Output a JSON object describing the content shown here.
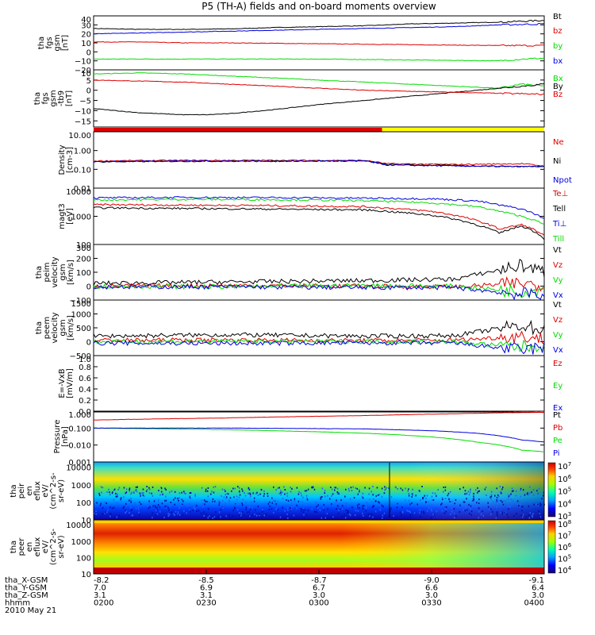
{
  "title": "P5 (TH-A) fields and on-board moments overview",
  "colors": {
    "black": "#000000",
    "red": "#dd0000",
    "green": "#00dd00",
    "blue": "#0000dd",
    "yellow": "#ffff00"
  },
  "chart_data": [
    {
      "type": "line",
      "ylabel": [
        "tha",
        "fgs",
        "gsm",
        "[nT]"
      ],
      "ylim": [
        -20,
        40
      ],
      "yticks": [
        "40",
        "30",
        "20",
        "10",
        "0",
        "−10",
        "−20"
      ],
      "ytick_values": [
        40,
        30,
        20,
        10,
        0,
        -10,
        -20
      ],
      "series": [
        {
          "name": "Bt",
          "color": "black",
          "x": [
            0,
            0.1,
            0.2,
            0.3,
            0.4,
            0.5,
            0.6,
            0.7,
            0.8,
            0.9,
            1
          ],
          "y": [
            26,
            25,
            25,
            25.5,
            27,
            28,
            29,
            31,
            32,
            33,
            35
          ]
        },
        {
          "name": "bz",
          "color": "red",
          "x": [
            0,
            0.1,
            0.2,
            0.3,
            0.4,
            0.5,
            0.6,
            0.7,
            0.8,
            0.9,
            1
          ],
          "y": [
            11,
            11,
            10,
            10,
            9.5,
            9,
            8.5,
            8,
            7.5,
            7,
            7
          ]
        },
        {
          "name": "by",
          "color": "green",
          "x": [
            0,
            0.1,
            0.2,
            0.3,
            0.4,
            0.5,
            0.6,
            0.7,
            0.8,
            0.9,
            0.95,
            1
          ],
          "y": [
            -8,
            -8,
            -8,
            -8,
            -8,
            -8,
            -8.5,
            -9,
            -9.5,
            -10,
            -8,
            -7
          ]
        },
        {
          "name": "bx",
          "color": "blue",
          "x": [
            0,
            0.1,
            0.2,
            0.3,
            0.4,
            0.5,
            0.6,
            0.7,
            0.8,
            0.9,
            1
          ],
          "y": [
            20,
            21,
            22,
            23,
            24,
            25,
            26,
            27,
            28,
            30,
            31
          ]
        }
      ]
    },
    {
      "type": "line",
      "ylabel": [
        "tha",
        "fgs",
        "gsm",
        "-tb9",
        "[nT]"
      ],
      "ylim": [
        -18,
        10
      ],
      "yticks": [
        "10",
        "5",
        "0",
        "−5",
        "−10",
        "−15"
      ],
      "ytick_values": [
        10,
        5,
        0,
        -5,
        -10,
        -15
      ],
      "series": [
        {
          "name": "Bx",
          "color": "green",
          "x": [
            0,
            0.1,
            0.2,
            0.3,
            0.4,
            0.5,
            0.6,
            0.7,
            0.8,
            0.9,
            0.95,
            1
          ],
          "y": [
            8,
            8.5,
            8,
            7,
            6,
            5,
            4,
            3,
            2,
            1,
            3,
            2
          ]
        },
        {
          "name": "By",
          "color": "black",
          "x": [
            0,
            0.05,
            0.1,
            0.2,
            0.25,
            0.3,
            0.4,
            0.5,
            0.6,
            0.7,
            0.8,
            0.9,
            1
          ],
          "y": [
            -9,
            -10,
            -11,
            -12,
            -12,
            -11.5,
            -9.5,
            -7,
            -5,
            -3,
            -1,
            1,
            3
          ]
        },
        {
          "name": "Bz",
          "color": "red",
          "x": [
            0,
            0.1,
            0.2,
            0.3,
            0.4,
            0.5,
            0.6,
            0.7,
            0.8,
            0.9,
            1
          ],
          "y": [
            5,
            4.5,
            4,
            3,
            2,
            1,
            0,
            -0.5,
            -1,
            -1.5,
            -2
          ]
        }
      ]
    },
    {
      "type": "bar",
      "mode_bar": [
        {
          "from": 0,
          "to": 0.64,
          "color": "red"
        },
        {
          "from": 0.64,
          "to": 1,
          "color": "yellow"
        }
      ]
    },
    {
      "type": "line",
      "ylabel": [
        "Density",
        "[cm-3]"
      ],
      "log": true,
      "ylim": [
        0.01,
        10
      ],
      "yticks": [
        "10.00",
        "1.00",
        "0.10",
        "0.01"
      ],
      "ytick_values": [
        10,
        1,
        0.1,
        0.01
      ],
      "series": [
        {
          "name": "Ne",
          "color": "red",
          "x": [
            0,
            0.2,
            0.4,
            0.6,
            0.65,
            0.8,
            0.95,
            1
          ],
          "y": [
            0.28,
            0.3,
            0.3,
            0.3,
            0.2,
            0.18,
            0.2,
            0.15
          ]
        },
        {
          "name": "Ni",
          "color": "black",
          "x": [
            0,
            0.2,
            0.4,
            0.6,
            0.65,
            0.8,
            0.95,
            1
          ],
          "y": [
            0.25,
            0.27,
            0.28,
            0.28,
            0.18,
            0.16,
            0.14,
            0.15
          ]
        },
        {
          "name": "Npot",
          "color": "blue",
          "x": [
            0,
            0.2,
            0.4,
            0.6,
            0.65,
            0.8,
            0.95,
            1
          ],
          "y": [
            0.26,
            0.28,
            0.27,
            0.28,
            0.17,
            0.15,
            0.14,
            0.14
          ]
        }
      ]
    },
    {
      "type": "line",
      "ylabel": [
        "magt3",
        "[eV]"
      ],
      "log": true,
      "ylim": [
        100,
        10000
      ],
      "yticks": [
        "10000",
        "1000",
        "100"
      ],
      "ytick_values": [
        10000,
        1000,
        100
      ],
      "series": [
        {
          "name": "Te⊥",
          "color": "red",
          "x": [
            0,
            0.2,
            0.4,
            0.6,
            0.75,
            0.85,
            0.9,
            0.95,
            1
          ],
          "y": [
            2600,
            2500,
            2400,
            2200,
            1500,
            700,
            350,
            500,
            200
          ]
        },
        {
          "name": "Tell",
          "color": "black",
          "x": [
            0,
            0.2,
            0.4,
            0.6,
            0.75,
            0.85,
            0.9,
            0.95,
            1
          ],
          "y": [
            2000,
            1900,
            1800,
            1700,
            1100,
            500,
            250,
            450,
            160
          ]
        },
        {
          "name": "Ti⊥",
          "color": "blue",
          "x": [
            0,
            0.2,
            0.4,
            0.6,
            0.75,
            0.85,
            0.9,
            0.95,
            1
          ],
          "y": [
            4500,
            4700,
            4600,
            4400,
            4200,
            3500,
            2500,
            1800,
            800
          ]
        },
        {
          "name": "Till",
          "color": "green",
          "x": [
            0,
            0.2,
            0.4,
            0.6,
            0.75,
            0.85,
            0.9,
            0.95,
            1
          ],
          "y": [
            3800,
            4000,
            3900,
            3600,
            3000,
            2200,
            1500,
            1000,
            500
          ]
        }
      ]
    },
    {
      "type": "line",
      "ylabel": [
        "tha",
        "peim",
        "velocity",
        "gsm",
        "[km/s]"
      ],
      "ylim": [
        -100,
        300
      ],
      "yticks": [
        "300",
        "200",
        "100",
        "0",
        "−100"
      ],
      "ytick_values": [
        300,
        200,
        100,
        0,
        -100
      ],
      "series": [
        {
          "name": "Vt",
          "color": "black",
          "x": [
            0,
            0.3,
            0.6,
            0.8,
            0.95,
            1
          ],
          "y": [
            20,
            30,
            40,
            50,
            150,
            100
          ]
        },
        {
          "name": "Vz",
          "color": "red",
          "x": [
            0,
            0.3,
            0.6,
            0.8,
            0.95,
            1
          ],
          "y": [
            0,
            5,
            0,
            -5,
            20,
            10
          ]
        },
        {
          "name": "Vy",
          "color": "green",
          "x": [
            0,
            0.3,
            0.6,
            0.8,
            0.95,
            1
          ],
          "y": [
            0,
            -5,
            5,
            0,
            -40,
            -20
          ]
        },
        {
          "name": "Vx",
          "color": "blue",
          "x": [
            0,
            0.3,
            0.6,
            0.8,
            0.95,
            1
          ],
          "y": [
            -5,
            -5,
            -10,
            -10,
            -60,
            -50
          ]
        }
      ]
    },
    {
      "type": "line",
      "ylabel": [
        "tha",
        "peem",
        "velocity",
        "gsm",
        "[km/s]"
      ],
      "ylim": [
        -500,
        1500
      ],
      "yticks": [
        "1500",
        "1000",
        "500",
        "0",
        "−500"
      ],
      "ytick_values": [
        1500,
        1000,
        500,
        0,
        -500
      ],
      "series": [
        {
          "name": "Vt",
          "color": "black",
          "x": [
            0,
            0.3,
            0.6,
            0.8,
            0.95,
            1
          ],
          "y": [
            200,
            250,
            200,
            220,
            600,
            400
          ]
        },
        {
          "name": "Vz",
          "color": "red",
          "x": [
            0,
            0.3,
            0.6,
            0.8,
            0.95,
            1
          ],
          "y": [
            50,
            60,
            40,
            50,
            200,
            100
          ]
        },
        {
          "name": "Vy",
          "color": "green",
          "x": [
            0,
            0.3,
            0.6,
            0.8,
            0.95,
            1
          ],
          "y": [
            0,
            20,
            10,
            0,
            -200,
            -100
          ]
        },
        {
          "name": "Vx",
          "color": "blue",
          "x": [
            0,
            0.3,
            0.6,
            0.8,
            0.95,
            1
          ],
          "y": [
            -50,
            -60,
            -40,
            -50,
            -300,
            -200
          ]
        }
      ]
    },
    {
      "type": "line",
      "ylabel": [
        "E=-VxB",
        "[mV/m]"
      ],
      "ylim": [
        0,
        1
      ],
      "yticks": [
        "1.0",
        "0.8",
        "0.6",
        "0.4",
        "0.2",
        "0.0"
      ],
      "ytick_values": [
        1,
        0.8,
        0.6,
        0.4,
        0.2,
        0
      ],
      "series": [
        {
          "name": "Ez",
          "color": "red",
          "x": [],
          "y": []
        },
        {
          "name": "Ey",
          "color": "green",
          "x": [],
          "y": []
        },
        {
          "name": "Ex",
          "color": "blue",
          "x": [],
          "y": []
        }
      ]
    },
    {
      "type": "line",
      "ylabel": [
        "Pressure",
        "[nPa]"
      ],
      "log": true,
      "ylim": [
        0.001,
        1
      ],
      "yticks": [
        "1.000",
        "0.100",
        "0.010",
        "0.001"
      ],
      "ytick_values": [
        1,
        0.1,
        0.01,
        0.001
      ],
      "series": [
        {
          "name": "Pt",
          "color": "black",
          "x": [
            0,
            0.3,
            0.6,
            0.8,
            0.9,
            1
          ],
          "y": [
            0.9,
            0.95,
            0.95,
            0.92,
            0.9,
            0.85
          ]
        },
        {
          "name": "Pb",
          "color": "red",
          "x": [
            0,
            0.3,
            0.6,
            0.8,
            0.9,
            1
          ],
          "y": [
            0.3,
            0.4,
            0.55,
            0.7,
            0.8,
            0.85
          ]
        },
        {
          "name": "Pe",
          "color": "green",
          "x": [
            0,
            0.3,
            0.6,
            0.75,
            0.85,
            0.95,
            1
          ],
          "y": [
            0.1,
            0.08,
            0.05,
            0.03,
            0.015,
            0.005,
            0.004
          ]
        },
        {
          "name": "Pi",
          "color": "blue",
          "x": [
            0,
            0.3,
            0.6,
            0.75,
            0.85,
            0.95,
            1
          ],
          "y": [
            0.1,
            0.1,
            0.09,
            0.07,
            0.05,
            0.02,
            0.015
          ]
        }
      ]
    },
    {
      "type": "heatmap",
      "ylabel": [
        "tha",
        "peir",
        "en",
        "eflux",
        "eV/",
        "(cm^2-s-",
        "sr-eV)"
      ],
      "log": true,
      "ylim": [
        10,
        20000
      ],
      "yticks": [
        "10000",
        "1000",
        "100",
        "10"
      ],
      "ytick_values": [
        10000,
        1000,
        100,
        10
      ],
      "colorbar": {
        "labels": [
          "10^7",
          "10^6",
          "10^5",
          "10^4",
          "10^3"
        ]
      }
    },
    {
      "type": "heatmap",
      "ylabel": [
        "tha",
        "peer",
        "en",
        "eflux",
        "eV/",
        "(cm^2-s-",
        "sr-eV)"
      ],
      "log": true,
      "ylim": [
        10,
        20000
      ],
      "yticks": [
        "10000",
        "1000",
        "100",
        "10"
      ],
      "ytick_values": [
        10000,
        1000,
        100,
        10
      ],
      "colorbar": {
        "labels": [
          "10^8",
          "10^7",
          "10^6",
          "10^5",
          "10^4"
        ]
      }
    }
  ],
  "xaxis": {
    "rows": [
      {
        "label": "tha_X-GSM",
        "values": [
          "-8.2",
          "-8.5",
          "-8.7",
          "-9.0",
          "-9.1"
        ]
      },
      {
        "label": "tha_Y-GSM",
        "values": [
          "7.0",
          "6.9",
          "6.7",
          "6.6",
          "6.4"
        ]
      },
      {
        "label": "tha_Z-GSM",
        "values": [
          "3.1",
          "3.1",
          "3.0",
          "3.0",
          "3.0"
        ]
      },
      {
        "label": "hhmm",
        "values": [
          "0200",
          "0230",
          "0300",
          "0330",
          "0400"
        ]
      }
    ],
    "date": "2010 May 21"
  }
}
